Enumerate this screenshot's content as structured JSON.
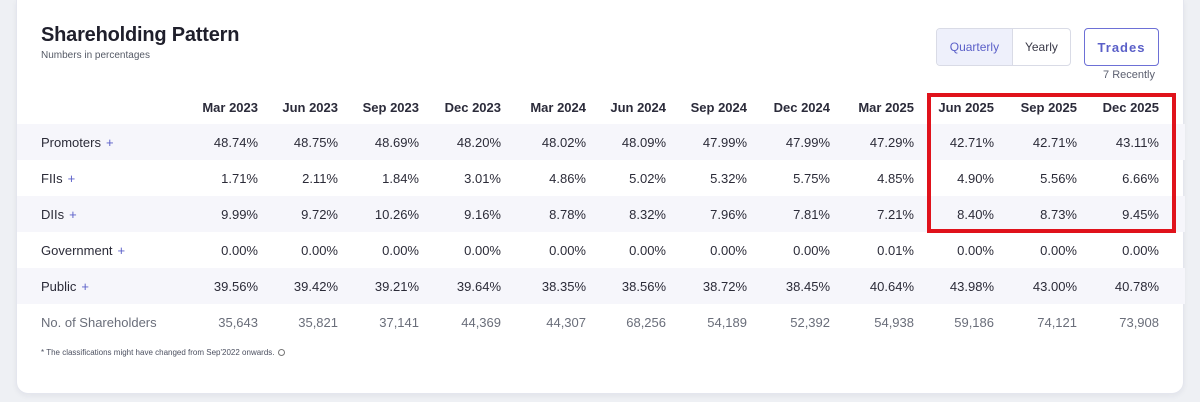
{
  "header": {
    "title": "Shareholding Pattern",
    "subtitle": "Numbers in percentages"
  },
  "controls": {
    "period_toggle": {
      "quarterly": "Quarterly",
      "yearly": "Yearly",
      "selected": "Quarterly"
    },
    "trades_label": "Trades",
    "recent_label": "7 Recently"
  },
  "table": {
    "columns": [
      "Mar 2023",
      "Jun 2023",
      "Sep 2023",
      "Dec 2023",
      "Mar 2024",
      "Jun 2024",
      "Sep 2024",
      "Dec 2024",
      "Mar 2025",
      "Jun 2025",
      "Sep 2025",
      "Dec 2025"
    ],
    "rows": [
      {
        "label": "Promoters",
        "expand": "+",
        "values": [
          "48.74%",
          "48.75%",
          "48.69%",
          "48.20%",
          "48.02%",
          "48.09%",
          "47.99%",
          "47.99%",
          "47.29%",
          "42.71%",
          "42.71%",
          "43.11%"
        ]
      },
      {
        "label": "FIIs",
        "expand": "+",
        "values": [
          "1.71%",
          "2.11%",
          "1.84%",
          "3.01%",
          "4.86%",
          "5.02%",
          "5.32%",
          "5.75%",
          "4.85%",
          "4.90%",
          "5.56%",
          "6.66%"
        ]
      },
      {
        "label": "DIIs",
        "expand": "+",
        "values": [
          "9.99%",
          "9.72%",
          "10.26%",
          "9.16%",
          "8.78%",
          "8.32%",
          "7.96%",
          "7.81%",
          "7.21%",
          "8.40%",
          "8.73%",
          "9.45%"
        ]
      },
      {
        "label": "Government",
        "expand": "+",
        "values": [
          "0.00%",
          "0.00%",
          "0.00%",
          "0.00%",
          "0.00%",
          "0.00%",
          "0.00%",
          "0.00%",
          "0.01%",
          "0.00%",
          "0.00%",
          "0.00%"
        ]
      },
      {
        "label": "Public",
        "expand": "+",
        "values": [
          "39.56%",
          "39.42%",
          "39.21%",
          "39.64%",
          "38.35%",
          "38.56%",
          "38.72%",
          "38.45%",
          "40.64%",
          "43.98%",
          "43.00%",
          "40.78%"
        ]
      },
      {
        "label": "No. of Shareholders",
        "expand": "",
        "values": [
          "35,643",
          "35,821",
          "37,141",
          "44,369",
          "44,307",
          "68,256",
          "54,189",
          "52,392",
          "54,938",
          "59,186",
          "74,121",
          "73,908"
        ]
      }
    ]
  },
  "footnote": "* The classifications might have changed from Sep'2022 onwards.",
  "colors": {
    "accent": "#5a5fc8",
    "highlight_border": "#e0121b",
    "alt_row": "#f6f6fb"
  },
  "icons": {
    "footnote_info": "info-icon"
  }
}
